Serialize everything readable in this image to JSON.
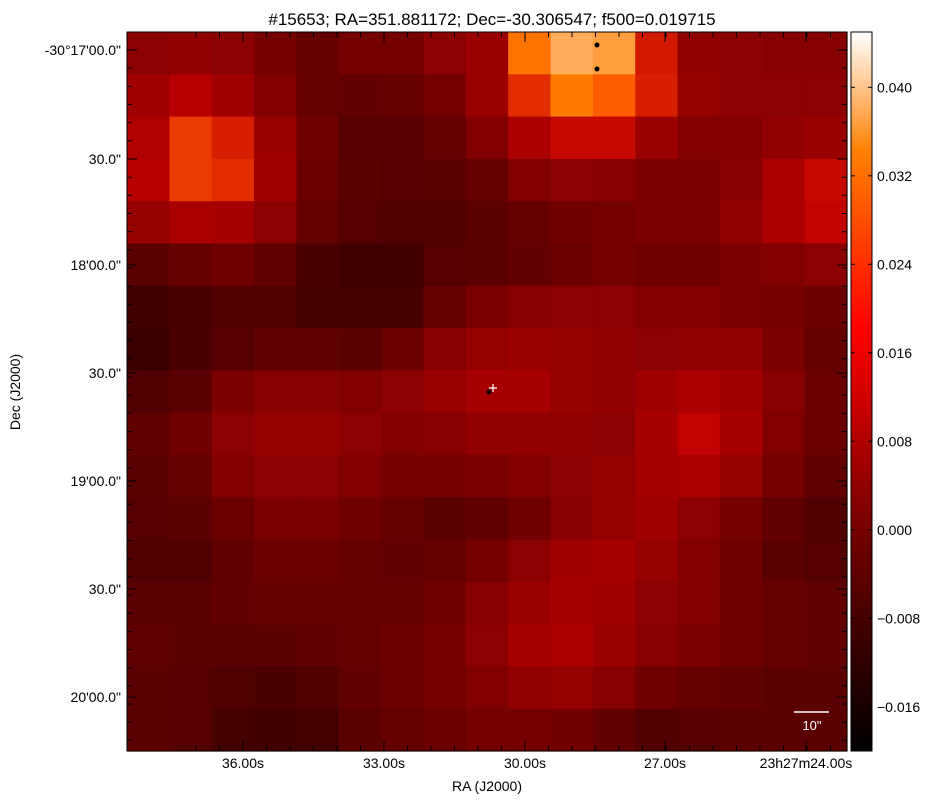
{
  "chart_data": {
    "type": "heatmap",
    "title": "#15653;  RA=351.881172;  Dec=-30.306547;  f500=0.019715",
    "xlabel": "RA (J2000)",
    "ylabel": "Dec (J2000)",
    "x_ticks": [
      "36.00s",
      "33.00s",
      "30.00s",
      "27.00s",
      "23h27m24.00s"
    ],
    "y_ticks": [
      "-30°17'00.0\"",
      "30.0\"",
      "18'00.0\"",
      "30.0\"",
      "19'00.0\"",
      "30.0\"",
      "20'00.0\""
    ],
    "colorbar": {
      "colormap": "gist_heat",
      "range": [
        -0.02,
        0.045
      ],
      "ticks": [
        "0.040",
        "0.032",
        "0.024",
        "0.016",
        "0.008",
        "0.000",
        "−0.008",
        "−0.016"
      ]
    },
    "scale_bar_label": "10\"",
    "grid_rows": 17,
    "grid_cols": 17,
    "values": [
      [
        0.0036,
        0.0045,
        0.0036,
        -0.0001,
        -0.0028,
        -0.0001,
        -0.0001,
        0.0036,
        0.0064,
        0.0273,
        0.0345,
        0.0327,
        0.0155,
        0.0045,
        0.0036,
        0.0027,
        0.0027
      ],
      [
        0.0073,
        0.0109,
        0.0073,
        0.0018,
        -0.0028,
        -0.0037,
        -0.0028,
        -0.0001,
        0.0064,
        0.0182,
        0.0282,
        0.0245,
        0.0164,
        0.0054,
        0.0036,
        0.0036,
        0.0036
      ],
      [
        0.01,
        0.02,
        0.0164,
        0.0064,
        -0.001,
        -0.0055,
        -0.0055,
        -0.0028,
        0.0018,
        0.0091,
        0.0136,
        0.0136,
        0.0064,
        0.0018,
        0.0018,
        0.0045,
        0.0064
      ],
      [
        0.0109,
        0.02,
        0.0182,
        0.0073,
        -0.0019,
        -0.0046,
        -0.0055,
        -0.0046,
        -0.0028,
        0.0018,
        0.0036,
        0.0027,
        0.0009,
        0.0009,
        0.0027,
        0.0091,
        0.0136
      ],
      [
        0.0054,
        0.0091,
        0.0082,
        0.0036,
        -0.0028,
        -0.0055,
        -0.0064,
        -0.0064,
        -0.0046,
        -0.0028,
        -0.001,
        -0.0001,
        0.0009,
        0.0009,
        0.0045,
        0.0091,
        0.0127
      ],
      [
        -0.0046,
        -0.0028,
        -0.001,
        -0.0037,
        -0.0073,
        -0.0092,
        -0.0092,
        -0.0055,
        -0.0046,
        -0.0037,
        -0.0019,
        -0.0001,
        -0.001,
        -0.001,
        0.0009,
        0.0018,
        0.0036
      ],
      [
        -0.0092,
        -0.0073,
        -0.0064,
        -0.0064,
        -0.0083,
        -0.0083,
        -0.0083,
        -0.0028,
        0.0009,
        0.0027,
        0.0036,
        0.0036,
        0.0018,
        0.0018,
        0.0009,
        -0.0001,
        -0.0019
      ],
      [
        -0.0101,
        -0.0073,
        -0.0055,
        -0.0037,
        -0.0037,
        -0.0046,
        -0.0019,
        0.0027,
        0.0054,
        0.0064,
        0.0054,
        0.0045,
        0.0036,
        0.0045,
        0.0045,
        0.0009,
        -0.0028
      ],
      [
        -0.0064,
        -0.0046,
        0.0009,
        0.0027,
        0.0027,
        0.0018,
        0.0036,
        0.0064,
        0.0082,
        0.0082,
        0.0054,
        0.0045,
        0.0073,
        0.0091,
        0.0073,
        0.0027,
        -0.0019
      ],
      [
        -0.0037,
        -0.001,
        0.0036,
        0.0054,
        0.0054,
        0.0036,
        0.0018,
        0.0027,
        0.0045,
        0.0045,
        0.0045,
        0.0036,
        0.0082,
        0.0127,
        0.0082,
        0.0018,
        -0.0019
      ],
      [
        -0.0046,
        -0.0028,
        0.0018,
        0.0036,
        0.0036,
        0.0018,
        -0.0001,
        -0.0001,
        0.0009,
        0.0018,
        0.0036,
        0.0054,
        0.0082,
        0.0091,
        0.0054,
        -0.0001,
        -0.0037
      ],
      [
        -0.0055,
        -0.0046,
        -0.0019,
        0.0009,
        0.0009,
        -0.001,
        -0.0028,
        -0.0046,
        -0.0037,
        -0.001,
        0.0027,
        0.0054,
        0.0073,
        0.0036,
        -0.0001,
        -0.0037,
        -0.0064
      ],
      [
        -0.0064,
        -0.0064,
        -0.0037,
        -0.0019,
        -0.0019,
        -0.0028,
        -0.0037,
        -0.0028,
        -0.0001,
        0.0036,
        0.0073,
        0.0082,
        0.0054,
        0.0018,
        -0.001,
        -0.0046,
        -0.0055
      ],
      [
        -0.0046,
        -0.0046,
        -0.0037,
        -0.0028,
        -0.0028,
        -0.0028,
        -0.0028,
        -0.001,
        0.0027,
        0.0064,
        0.0082,
        0.0073,
        0.0036,
        0.0018,
        -0.001,
        -0.0028,
        -0.0037
      ],
      [
        -0.0037,
        -0.0046,
        -0.0046,
        -0.0046,
        -0.0037,
        -0.0028,
        -0.0019,
        -0.0001,
        0.0036,
        0.0082,
        0.0091,
        0.0064,
        0.0027,
        0.0009,
        -0.001,
        -0.0028,
        -0.0037
      ],
      [
        -0.0046,
        -0.0055,
        -0.0064,
        -0.0073,
        -0.0064,
        -0.0037,
        -0.0019,
        -0.0001,
        0.0018,
        0.0045,
        0.0054,
        0.0027,
        -0.001,
        -0.0028,
        -0.0037,
        -0.0046,
        -0.0046
      ],
      [
        -0.0046,
        -0.0055,
        -0.0083,
        -0.0092,
        -0.0083,
        -0.0046,
        -0.0028,
        -0.0019,
        -0.0001,
        -0.0001,
        -0.001,
        -0.0037,
        -0.0064,
        -0.0055,
        -0.0046,
        -0.0046,
        -0.0046
      ]
    ]
  }
}
